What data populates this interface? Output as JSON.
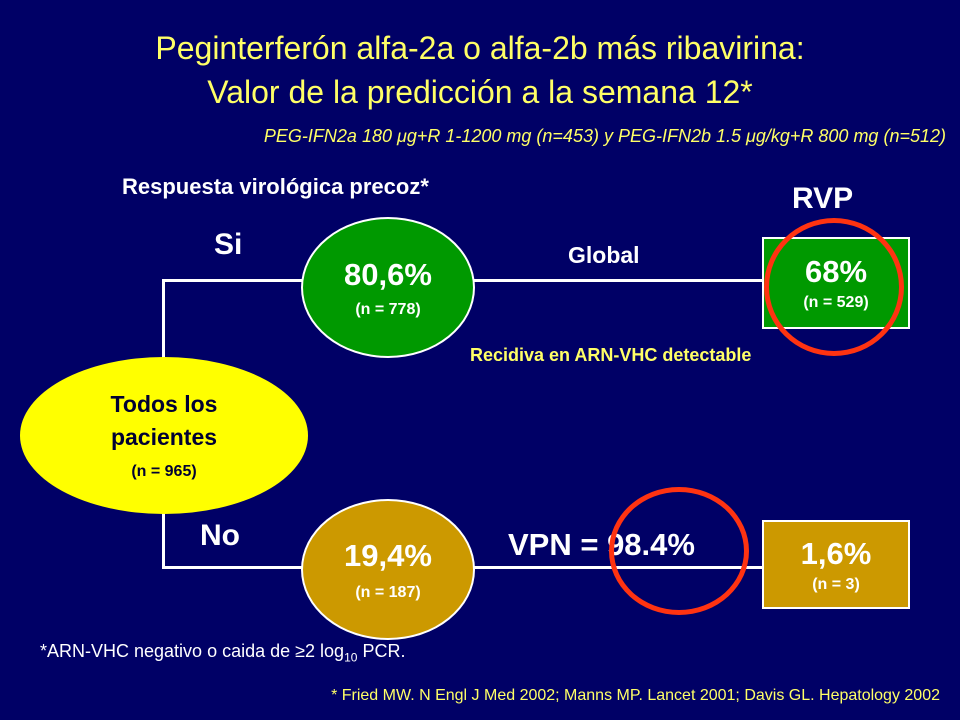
{
  "title": {
    "line1": "Peginterferón alfa-2a o alfa-2b más ribavirina:",
    "line2": "Valor de la predicción a la semana 12*"
  },
  "subtitle": "PEG-IFN2a 180 μg+R 1-1200 mg (n=453) y PEG-IFN2b 1.5 μg/kg+R 800 mg (n=512)",
  "rvp_heading": "Respuesta virológica precoz*",
  "rvp_short": "RVP",
  "root": {
    "label_line1": "Todos los",
    "label_line2": "pacientes",
    "n": "(n = 965)"
  },
  "branch_yes": {
    "label": "Si",
    "pct": "80,6%",
    "n": "(n = 778)"
  },
  "branch_no": {
    "label": "No",
    "pct": "19,4%",
    "n": "(n = 187)"
  },
  "global_label": "Global",
  "outcome_yes": {
    "pct": "68%",
    "n": "(n = 529)"
  },
  "relapse_label": "Recidiva en ARN-VHC detectable",
  "vpn_label": "VPN = 98.4%",
  "outcome_no": {
    "pct": "1,6%",
    "n": "(n = 3)"
  },
  "footnote": {
    "prefix": "*ARN-VHC negativo o caida de ",
    "symbol": "≥",
    "mid": "2 log",
    "sub": "10",
    "suffix": " PCR."
  },
  "reference": "* Fried MW. N Engl J Med 2002; Manns MP. Lancet 2001; Davis GL. Hepatology 2002",
  "colors": {
    "background": "#000066",
    "title": "#ffff66",
    "green": "#009900",
    "gold": "#cc9900",
    "yellow": "#ffff00",
    "ring": "#ff3311"
  }
}
